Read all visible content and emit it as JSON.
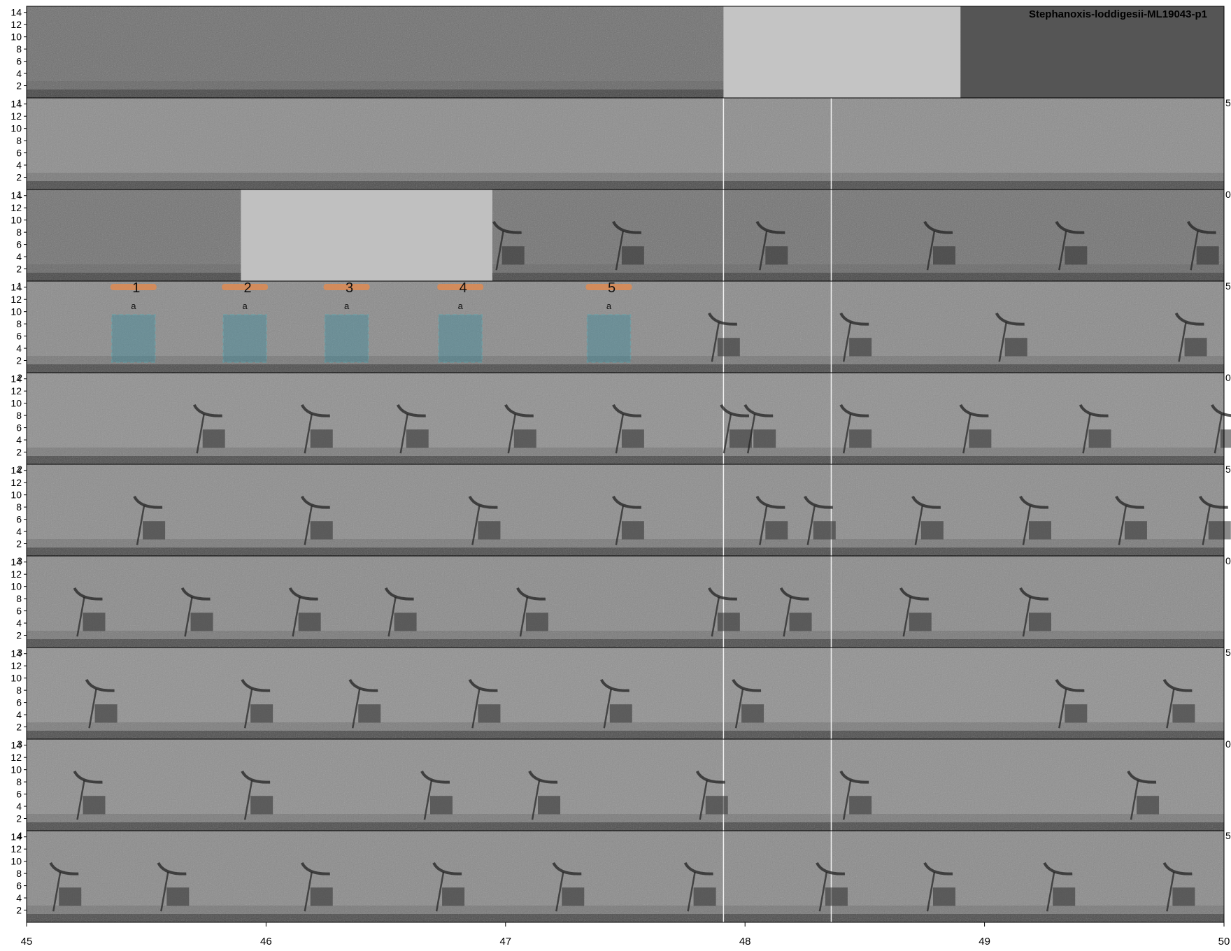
{
  "title": "Stephanoxis-loddigesii-ML19043-p1",
  "freq_ticks": [
    "2",
    "4",
    "6",
    "8",
    "10",
    "12",
    "14"
  ],
  "time_ticks": [
    "45",
    "46",
    "47",
    "48",
    "49",
    "50"
  ],
  "rows": 10,
  "colors": {
    "selection_fill": "#2a8aa0",
    "selection_stroke": "#3cb7c6",
    "bar": "#d98b56",
    "background": "#ffffff"
  },
  "annotations": [
    {
      "number": "1",
      "label": "a"
    },
    {
      "number": "2",
      "label": "a"
    },
    {
      "number": "3",
      "label": "a"
    },
    {
      "number": "4",
      "label": "a"
    },
    {
      "number": "5",
      "label": "a"
    }
  ],
  "side_markers": [
    {
      "left": "",
      "right": ""
    },
    {
      "left": "1",
      "right": "5"
    },
    {
      "left": "1",
      "right": "0"
    },
    {
      "left": "1",
      "right": "5"
    },
    {
      "left": "2",
      "right": "0"
    },
    {
      "left": "2",
      "right": "5"
    },
    {
      "left": "3",
      "right": "0"
    },
    {
      "left": "3",
      "right": "5"
    },
    {
      "left": "3",
      "right": "0"
    },
    {
      "left": "4",
      "right": "5"
    }
  ]
}
